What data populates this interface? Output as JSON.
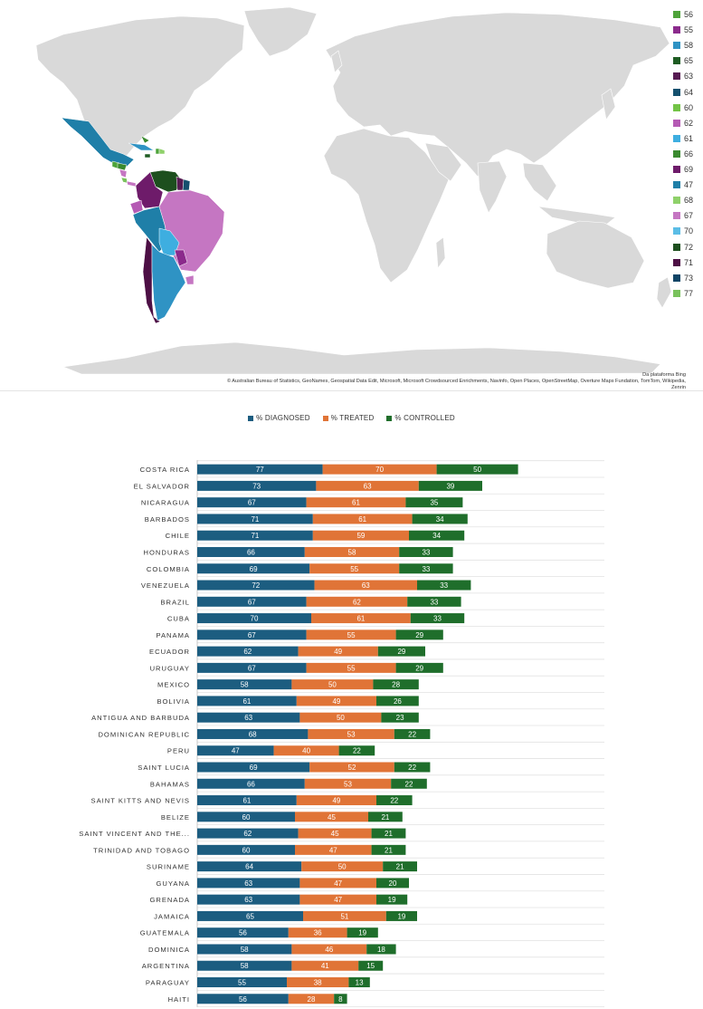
{
  "map": {
    "source_title": "Da plataforma Bing",
    "source_credits": "© Australian Bureau of Statistics, GeoNames, Geospatial Data Edit, Microsoft, Microsoft Crowdsourced Enrichments, Navinfo, Open Places, OpenStreetMap, Overture Maps Fundation, TomTom, Wikipedia, Zenrin",
    "land_color": "#d9d9d9",
    "legend": [
      {
        "label": "56",
        "color": "#4ea33a"
      },
      {
        "label": "55",
        "color": "#8b2a8c"
      },
      {
        "label": "58",
        "color": "#2f93c4"
      },
      {
        "label": "65",
        "color": "#1e5c23"
      },
      {
        "label": "63",
        "color": "#571b52"
      },
      {
        "label": "64",
        "color": "#14506e"
      },
      {
        "label": "60",
        "color": "#72c346"
      },
      {
        "label": "62",
        "color": "#b55ab4"
      },
      {
        "label": "61",
        "color": "#3eaee0"
      },
      {
        "label": "66",
        "color": "#3a8a2f"
      },
      {
        "label": "69",
        "color": "#6e1b6a"
      },
      {
        "label": "47",
        "color": "#1f7fa8"
      },
      {
        "label": "68",
        "color": "#8fd16a"
      },
      {
        "label": "67",
        "color": "#c576c2"
      },
      {
        "label": "70",
        "color": "#5bbde6"
      },
      {
        "label": "72",
        "color": "#1d4f1e"
      },
      {
        "label": "71",
        "color": "#4d0f45"
      },
      {
        "label": "73",
        "color": "#0f4566"
      },
      {
        "label": "77",
        "color": "#79c25c"
      }
    ]
  },
  "chart_data": {
    "type": "bar",
    "orientation": "horizontal",
    "stacked": true,
    "legend_position": "top-center",
    "grid": true,
    "categories": [
      "COSTA RICA",
      "EL SALVADOR",
      "NICARAGUA",
      "BARBADOS",
      "CHILE",
      "HONDURAS",
      "COLOMBIA",
      "VENEZUELA",
      "BRAZIL",
      "CUBA",
      "PANAMA",
      "ECUADOR",
      "URUGUAY",
      "MEXICO",
      "BOLIVIA",
      "ANTIGUA AND BARBUDA",
      "DOMINICAN REPUBLIC",
      "PERU",
      "SAINT LUCIA",
      "BAHAMAS",
      "SAINT KITTS AND NEVIS",
      "BELIZE",
      "SAINT VINCENT AND THE...",
      "TRINIDAD AND TOBAGO",
      "SURINAME",
      "GUYANA",
      "GRENADA",
      "JAMAICA",
      "GUATEMALA",
      "DOMINICA",
      "ARGENTINA",
      "PARAGUAY",
      "HAITI"
    ],
    "series": [
      {
        "name": "% DIAGNOSED",
        "color": "#1c5d80",
        "values": [
          77,
          73,
          67,
          71,
          71,
          66,
          69,
          72,
          67,
          70,
          67,
          62,
          67,
          58,
          61,
          63,
          68,
          47,
          69,
          66,
          61,
          60,
          62,
          60,
          64,
          63,
          63,
          65,
          56,
          58,
          58,
          55,
          56
        ]
      },
      {
        "name": "% TREATED",
        "color": "#e07437",
        "values": [
          70,
          63,
          61,
          61,
          59,
          58,
          55,
          63,
          62,
          61,
          55,
          49,
          55,
          50,
          49,
          50,
          53,
          40,
          52,
          53,
          49,
          45,
          45,
          47,
          50,
          47,
          47,
          51,
          36,
          46,
          41,
          38,
          28
        ]
      },
      {
        "name": "% CONTROLLED",
        "color": "#1f6e2b",
        "values": [
          50,
          39,
          35,
          34,
          34,
          33,
          33,
          33,
          33,
          33,
          29,
          29,
          29,
          28,
          26,
          23,
          22,
          22,
          22,
          22,
          22,
          21,
          21,
          21,
          21,
          20,
          19,
          19,
          19,
          18,
          15,
          13,
          8
        ]
      }
    ],
    "xlim": [
      0,
      250
    ]
  }
}
